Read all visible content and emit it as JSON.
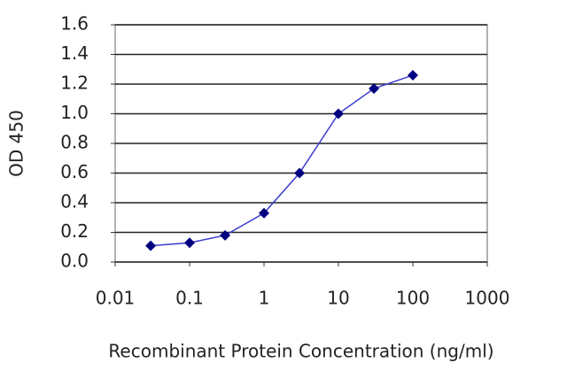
{
  "chart_data": {
    "type": "line",
    "xlabel": "Recombinant Protein Concentration (ng/ml)",
    "ylabel": "OD 450",
    "xscale": "log",
    "x": [
      0.03,
      0.1,
      0.3,
      1,
      3,
      10,
      30,
      100
    ],
    "series": [
      {
        "color": "#000080",
        "line_color": "#3b3bd0",
        "values": [
          0.11,
          0.13,
          0.18,
          0.33,
          0.6,
          1.0,
          1.17,
          1.26
        ]
      }
    ],
    "xlim": [
      0.01,
      1000
    ],
    "xticks": [
      0.01,
      0.1,
      1,
      10,
      100,
      1000
    ],
    "ylim": [
      0,
      1.6
    ],
    "yticks": [
      {
        "value": 0,
        "label": "0.0"
      },
      0.2,
      0.4,
      0.6,
      0.8,
      {
        "value": 1,
        "label": "1.0"
      },
      1.2,
      1.4,
      1.6
    ],
    "grid": true
  }
}
